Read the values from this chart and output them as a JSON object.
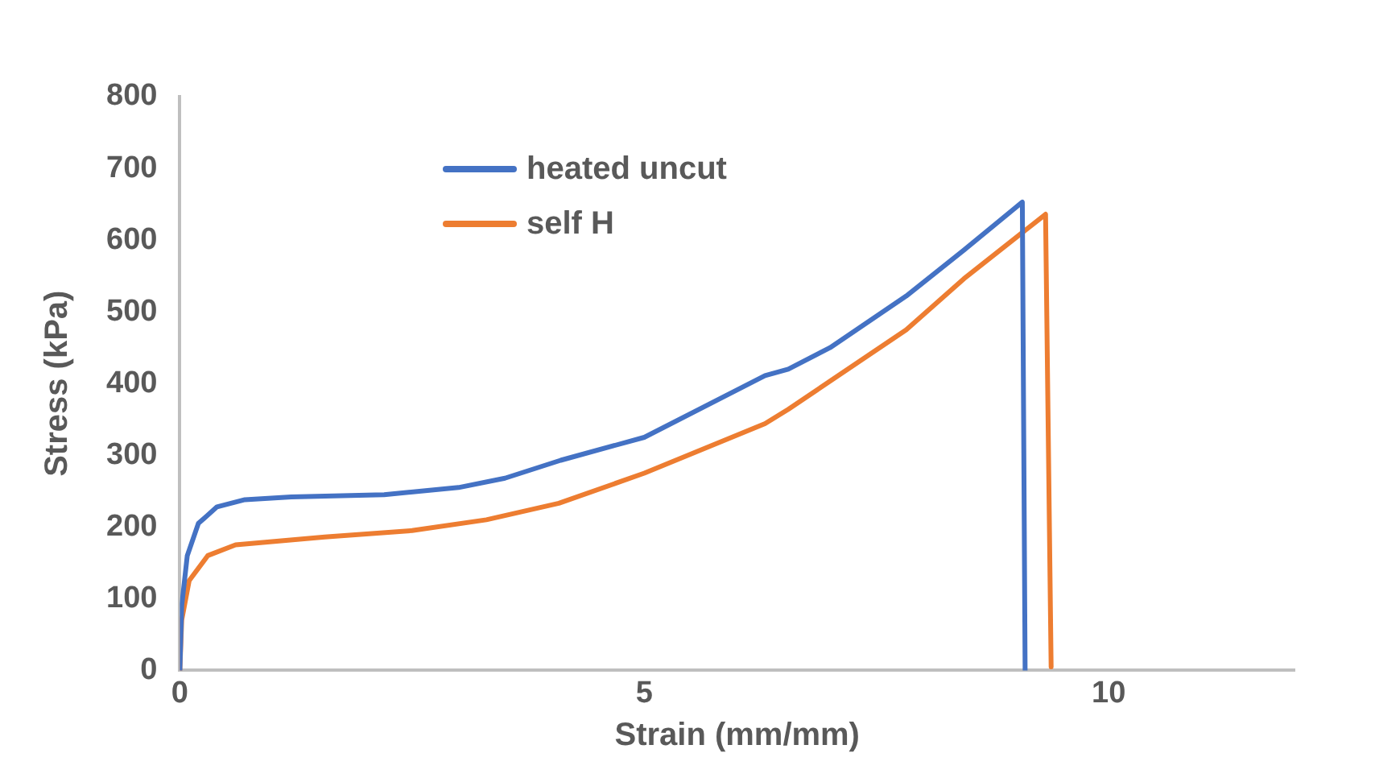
{
  "chart_data": {
    "type": "line",
    "xlabel": "Strain (mm/mm)",
    "ylabel": "Stress (kPa)",
    "xlim": [
      0,
      12
    ],
    "xticks": [
      0,
      5,
      10
    ],
    "ylim": [
      0,
      800
    ],
    "yticks": [
      0,
      100,
      200,
      300,
      400,
      500,
      600,
      700,
      800
    ],
    "grid": false,
    "legend": "top left",
    "marker": "none",
    "line_style": "solid",
    "series": [
      {
        "name": "heated uncut",
        "color": "#4472c4",
        "x": [
          0,
          0.02,
          0.08,
          0.2,
          0.4,
          0.7,
          1.2,
          2.2,
          3,
          3.5,
          4.1,
          5,
          6.3,
          6.55,
          7,
          7.82,
          8.44,
          9.07,
          9.1
        ],
        "values": [
          0,
          90,
          160,
          205,
          228,
          238,
          242,
          245,
          255,
          268,
          293,
          325,
          411,
          420,
          450,
          522,
          586,
          653,
          0
        ]
      },
      {
        "name": "self H",
        "color": "#ed7d31",
        "x": [
          0,
          0.02,
          0.1,
          0.3,
          0.6,
          1.56,
          2.5,
          3.3,
          4.08,
          5,
          6.3,
          6.55,
          7.82,
          8.44,
          9.32,
          9.38
        ],
        "values": [
          0,
          70,
          125,
          160,
          175,
          186,
          195,
          210,
          233,
          275,
          344,
          364,
          475,
          546,
          636,
          5
        ]
      }
    ]
  }
}
